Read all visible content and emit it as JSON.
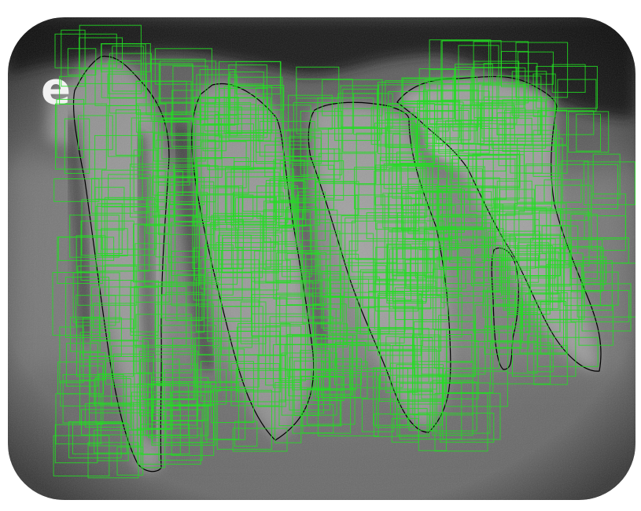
{
  "image": {
    "kind": "dental periapical radiograph with tooth outlines and dense green detection boxes",
    "marker_letter": "e",
    "colors": {
      "background": "#ffffff",
      "film_dark": "#1e1e1e",
      "film_mid": "#6e6e6e",
      "bone_light": "#b8b8b8",
      "crown_bright": "#e2e2e2",
      "outline": "#000000",
      "box": "#22dd22"
    },
    "tooth_outline_count": 5,
    "detection_box_count_approx": 600
  }
}
